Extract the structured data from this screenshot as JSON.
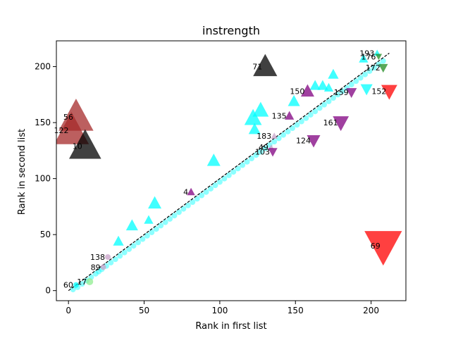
{
  "chart_data": {
    "type": "scatter",
    "title": "instrength",
    "xlabel": "Rank in first list",
    "ylabel": "Rank in second list",
    "xlim": [
      -8,
      223
    ],
    "ylim": [
      -9,
      223
    ],
    "xticks": [
      0,
      50,
      100,
      150,
      200
    ],
    "yticks": [
      0,
      50,
      100,
      150,
      200
    ],
    "grid": false,
    "diagonal_line": {
      "from": [
        0,
        0
      ],
      "to": [
        212,
        212
      ],
      "style": "dashed",
      "color": "#000000"
    },
    "dense_band": {
      "color": "#00ffff",
      "note_points": [
        [
          3,
          1
        ],
        [
          6,
          3
        ],
        [
          9,
          6
        ],
        [
          12,
          9
        ],
        [
          15,
          12
        ],
        [
          18,
          15
        ],
        [
          20,
          17
        ],
        [
          22,
          19
        ],
        [
          25,
          22
        ],
        [
          28,
          25
        ],
        [
          31,
          28
        ],
        [
          34,
          31
        ],
        [
          37,
          34
        ],
        [
          40,
          37
        ],
        [
          43,
          40
        ],
        [
          46,
          43
        ],
        [
          49,
          46
        ],
        [
          52,
          49
        ],
        [
          55,
          52
        ],
        [
          58,
          55
        ],
        [
          61,
          58
        ],
        [
          64,
          61
        ],
        [
          67,
          64
        ],
        [
          70,
          67
        ],
        [
          73,
          70
        ],
        [
          76,
          73
        ],
        [
          79,
          76
        ],
        [
          82,
          79
        ],
        [
          85,
          82
        ],
        [
          88,
          85
        ],
        [
          91,
          88
        ],
        [
          94,
          91
        ],
        [
          97,
          94
        ],
        [
          100,
          97
        ],
        [
          103,
          100
        ],
        [
          106,
          103
        ],
        [
          109,
          106
        ],
        [
          112,
          109
        ],
        [
          115,
          112
        ],
        [
          118,
          115
        ],
        [
          121,
          118
        ],
        [
          124,
          121
        ],
        [
          127,
          124
        ],
        [
          130,
          127
        ],
        [
          133,
          130
        ],
        [
          136,
          133
        ],
        [
          139,
          136
        ],
        [
          142,
          139
        ],
        [
          145,
          142
        ],
        [
          148,
          145
        ],
        [
          151,
          148
        ],
        [
          154,
          151
        ],
        [
          157,
          154
        ],
        [
          160,
          157
        ],
        [
          163,
          160
        ],
        [
          166,
          163
        ],
        [
          169,
          166
        ],
        [
          172,
          169
        ],
        [
          175,
          172
        ],
        [
          178,
          175
        ],
        [
          181,
          178
        ],
        [
          184,
          181
        ],
        [
          187,
          184
        ],
        [
          190,
          187
        ],
        [
          193,
          190
        ],
        [
          196,
          193
        ],
        [
          199,
          196
        ],
        [
          202,
          199
        ],
        [
          205,
          202
        ],
        [
          208,
          205
        ]
      ]
    },
    "points": [
      {
        "label": "193",
        "x": 204,
        "y": 212,
        "shape": "tri-up",
        "color": "#00ffff",
        "size": 5
      },
      {
        "label": "176",
        "x": 205,
        "y": 209,
        "shape": "tri-down",
        "color": "#228b22",
        "size": 5
      },
      {
        "label": "172",
        "x": 208,
        "y": 199,
        "shape": "tri-down",
        "color": "#228b22",
        "size": 7
      },
      {
        "label": "71",
        "x": 130,
        "y": 200,
        "shape": "tri-up",
        "color": "#000000",
        "size": 18
      },
      {
        "label": "150",
        "x": 158,
        "y": 178,
        "shape": "tri-up",
        "color": "#800080",
        "size": 10
      },
      {
        "label": "159",
        "x": 187,
        "y": 177,
        "shape": "tri-down",
        "color": "#800080",
        "size": 8
      },
      {
        "label": "152",
        "x": 212,
        "y": 178,
        "shape": "tri-down",
        "color": "#ff0000",
        "size": 12
      },
      {
        "label": "135",
        "x": 146,
        "y": 156,
        "shape": "tri-up",
        "color": "#800080",
        "size": 7
      },
      {
        "label": "161",
        "x": 180,
        "y": 150,
        "shape": "tri-down",
        "color": "#800080",
        "size": 12
      },
      {
        "label": "56",
        "x": 5,
        "y": 155,
        "shape": "tri-up",
        "color": "#a52a2a",
        "size": 26
      },
      {
        "label": "122",
        "x": 2,
        "y": 143,
        "shape": "tri-up",
        "color": "#a52a2a",
        "size": 26
      },
      {
        "label": "183",
        "x": 136,
        "y": 138,
        "shape": "tri-up",
        "color": "#c8a2c8",
        "size": 5
      },
      {
        "label": "124",
        "x": 162,
        "y": 134,
        "shape": "tri-down",
        "color": "#800080",
        "size": 10
      },
      {
        "label": "10",
        "x": 11,
        "y": 129,
        "shape": "tri-up",
        "color": "#000000",
        "size": 24
      },
      {
        "label": "49",
        "x": 134,
        "y": 128,
        "shape": "tri-up",
        "color": "#c8a2c8",
        "size": 4
      },
      {
        "label": "103",
        "x": 135,
        "y": 124,
        "shape": "tri-down",
        "color": "#800080",
        "size": 7
      },
      {
        "label": "4",
        "x": 81,
        "y": 88,
        "shape": "tri-up",
        "color": "#800080",
        "size": 6
      },
      {
        "label": "69",
        "x": 208,
        "y": 40,
        "shape": "tri-down",
        "color": "#ff0000",
        "size": 28
      },
      {
        "label": "138",
        "x": 26,
        "y": 30,
        "shape": "circle",
        "color": "#c8a2c8",
        "size": 4
      },
      {
        "label": "89",
        "x": 23,
        "y": 21,
        "shape": "circle",
        "color": "#c8a2c8",
        "size": 4
      },
      {
        "label": "60",
        "x": 5,
        "y": 5,
        "shape": "circle",
        "color": "#00ffff",
        "size": 4
      },
      {
        "label": "17",
        "x": 14,
        "y": 8,
        "shape": "circle",
        "color": "#90ee90",
        "size": 5
      }
    ],
    "extra_points": [
      {
        "x": 33,
        "y": 44,
        "shape": "tri-up",
        "color": "#00ffff",
        "size": 8
      },
      {
        "x": 42,
        "y": 58,
        "shape": "tri-up",
        "color": "#00ffff",
        "size": 9
      },
      {
        "x": 53,
        "y": 63,
        "shape": "tri-up",
        "color": "#00ffff",
        "size": 7
      },
      {
        "x": 57,
        "y": 78,
        "shape": "tri-up",
        "color": "#00ffff",
        "size": 10
      },
      {
        "x": 96,
        "y": 116,
        "shape": "tri-up",
        "color": "#00ffff",
        "size": 10
      },
      {
        "x": 122,
        "y": 154,
        "shape": "tri-up",
        "color": "#00ffff",
        "size": 13
      },
      {
        "x": 127,
        "y": 161,
        "shape": "tri-up",
        "color": "#00ffff",
        "size": 12
      },
      {
        "x": 123,
        "y": 144,
        "shape": "tri-up",
        "color": "#00ffff",
        "size": 9
      },
      {
        "x": 149,
        "y": 169,
        "shape": "tri-up",
        "color": "#00ffff",
        "size": 9
      },
      {
        "x": 163,
        "y": 183,
        "shape": "tri-up",
        "color": "#00ffff",
        "size": 8
      },
      {
        "x": 168,
        "y": 183,
        "shape": "tri-up",
        "color": "#00ffff",
        "size": 8
      },
      {
        "x": 172,
        "y": 181,
        "shape": "tri-up",
        "color": "#00ffff",
        "size": 7
      },
      {
        "x": 175,
        "y": 193,
        "shape": "tri-up",
        "color": "#00ffff",
        "size": 8
      },
      {
        "x": 195,
        "y": 207,
        "shape": "tri-up",
        "color": "#00ffff",
        "size": 7
      },
      {
        "x": 197,
        "y": 180,
        "shape": "tri-down",
        "color": "#00ffff",
        "size": 9
      }
    ]
  }
}
